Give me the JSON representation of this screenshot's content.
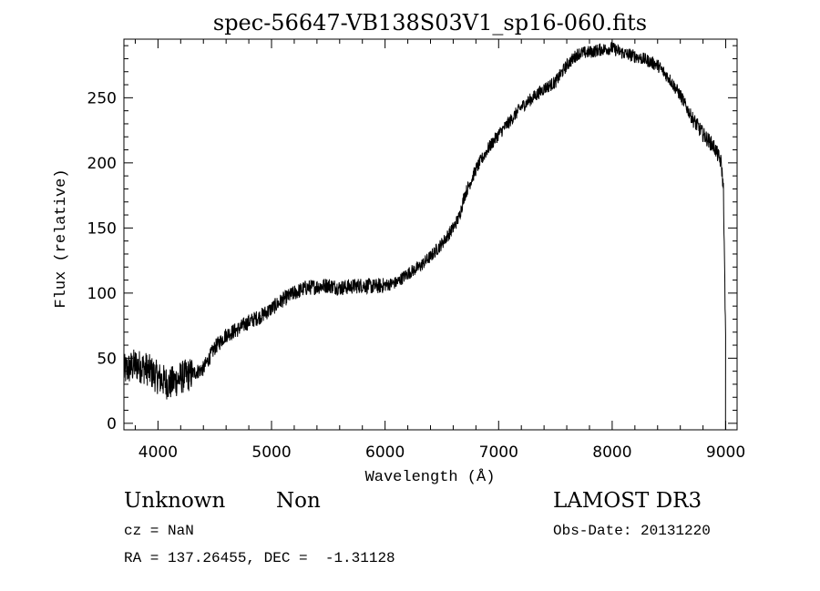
{
  "chart_data": {
    "type": "line",
    "title": "spec-56647-VB138S03V1_sp16-060.fits",
    "xlabel": "Wavelength (Å)",
    "ylabel": "Flux (relative)",
    "xlim": [
      3700,
      9100
    ],
    "ylim": [
      -5,
      295
    ],
    "xticks": [
      4000,
      5000,
      6000,
      7000,
      8000,
      9000
    ],
    "yticks": [
      0,
      50,
      100,
      150,
      200,
      250
    ],
    "series": [
      {
        "name": "spectrum",
        "x": [
          3700,
          3800,
          3900,
          4000,
          4100,
          4200,
          4300,
          4400,
          4500,
          4600,
          4700,
          4800,
          4900,
          5000,
          5100,
          5200,
          5300,
          5400,
          5500,
          5600,
          5700,
          5800,
          5900,
          6000,
          6100,
          6200,
          6300,
          6400,
          6500,
          6600,
          6650,
          6700,
          6800,
          6900,
          7000,
          7100,
          7200,
          7300,
          7400,
          7500,
          7600,
          7700,
          7800,
          7900,
          8000,
          8100,
          8200,
          8300,
          8400,
          8500,
          8600,
          8700,
          8800,
          8900,
          8960,
          8980,
          9000
        ],
        "y": [
          40,
          45,
          42,
          35,
          30,
          35,
          38,
          42,
          58,
          68,
          72,
          78,
          82,
          88,
          95,
          100,
          104,
          105,
          106,
          104,
          105,
          106,
          105,
          106,
          108,
          115,
          120,
          128,
          138,
          150,
          158,
          175,
          195,
          210,
          222,
          232,
          243,
          250,
          257,
          262,
          275,
          284,
          285,
          287,
          288,
          284,
          282,
          279,
          275,
          265,
          252,
          235,
          222,
          212,
          200,
          180,
          60
        ]
      }
    ]
  },
  "annotations": {
    "object_type": "Unknown",
    "subtype": "Non",
    "survey": "LAMOST DR3",
    "cz_label": "cz = NaN",
    "obs_date": "Obs-Date: 20131220",
    "radec": "RA = 137.26455, DEC =  -1.31128"
  }
}
